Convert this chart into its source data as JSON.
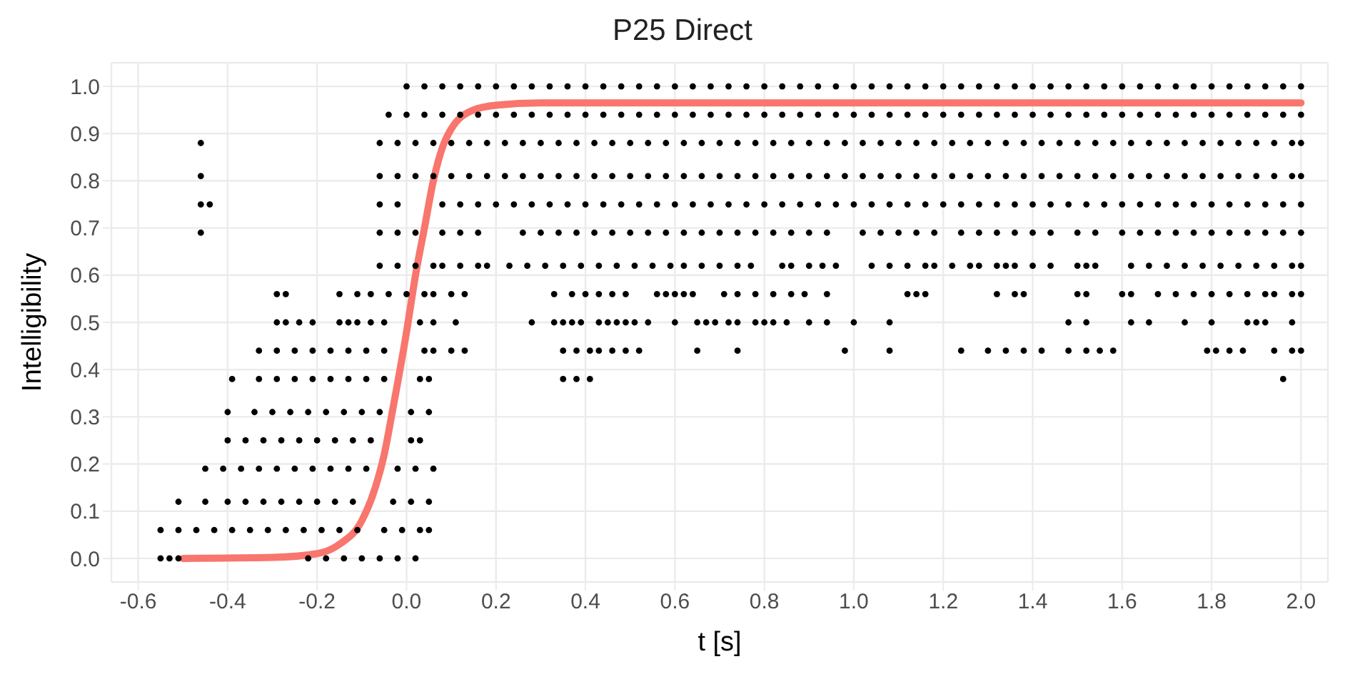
{
  "chart_data": {
    "type": "scatter",
    "title": "P25 Direct",
    "xlabel": "t [s]",
    "ylabel": "Intelligibility",
    "marker": "circle",
    "grid": true,
    "xlim": [
      -0.66,
      2.06
    ],
    "ylim": [
      -0.05,
      1.05
    ],
    "xticks": [
      -0.6,
      -0.4,
      -0.2,
      {
        "value": 0,
        "label": "0.0"
      },
      0.2,
      0.4,
      0.6,
      0.8,
      {
        "value": 1,
        "label": "1.0"
      },
      1.2,
      1.4,
      1.6,
      1.8,
      {
        "value": 2,
        "label": "2.0"
      }
    ],
    "yticks": [
      {
        "value": 0,
        "label": "0.0"
      },
      0.1,
      0.2,
      0.3,
      0.4,
      0.5,
      0.6,
      0.7,
      0.8,
      0.9,
      {
        "value": 1,
        "label": "1.0"
      }
    ],
    "series": [
      {
        "color": "#000000",
        "x": [
          0,
          0.04,
          0.08,
          0.12,
          0.16,
          0.2,
          0.24,
          0.28,
          0.32,
          0.36,
          0.4,
          0.44,
          0.48,
          0.52,
          0.56,
          0.6,
          0.64,
          0.68,
          0.72,
          0.76,
          0.8,
          0.84,
          0.88,
          0.92,
          0.96,
          1,
          1.04,
          1.08,
          1.12,
          1.16,
          1.2,
          1.24,
          1.28,
          1.32,
          1.36,
          1.4,
          1.44,
          1.48,
          1.52,
          1.56,
          1.6,
          1.64,
          1.68,
          1.72,
          1.76,
          1.8,
          1.84,
          1.88,
          1.92,
          1.96,
          2
        ],
        "values": [
          1,
          1,
          1,
          1,
          1,
          1,
          1,
          1,
          1,
          1,
          1,
          1,
          1,
          1,
          1,
          1,
          1,
          1,
          1,
          1,
          1,
          1,
          1,
          1,
          1,
          1,
          1,
          1,
          1,
          1,
          1,
          1,
          1,
          1,
          1,
          1,
          1,
          1,
          1,
          1,
          1,
          1,
          1,
          1,
          1,
          1,
          1,
          1,
          1,
          1,
          1
        ]
      },
      {
        "color": "#000000",
        "x": [
          -0.04,
          0,
          0.04,
          0.08,
          0.12,
          0.16,
          0.2,
          0.24,
          0.28,
          0.32,
          0.36,
          0.4,
          0.44,
          0.48,
          0.52,
          0.56,
          0.6,
          0.64,
          0.68,
          0.72,
          0.76,
          0.8,
          0.84,
          0.88,
          0.92,
          0.96,
          1,
          1.04,
          1.08,
          1.12,
          1.16,
          1.2,
          1.24,
          1.28,
          1.32,
          1.36,
          1.4,
          1.44,
          1.48,
          1.52,
          1.56,
          1.6,
          1.64,
          1.68,
          1.72,
          1.76,
          1.8,
          1.84,
          1.88,
          1.92,
          1.96,
          2
        ],
        "values": [
          0.94,
          0.94,
          0.94,
          0.94,
          0.94,
          0.94,
          0.94,
          0.94,
          0.94,
          0.94,
          0.94,
          0.94,
          0.94,
          0.94,
          0.94,
          0.94,
          0.94,
          0.94,
          0.94,
          0.94,
          0.94,
          0.94,
          0.94,
          0.94,
          0.94,
          0.94,
          0.94,
          0.94,
          0.94,
          0.94,
          0.94,
          0.94,
          0.94,
          0.94,
          0.94,
          0.94,
          0.94,
          0.94,
          0.94,
          0.94,
          0.94,
          0.94,
          0.94,
          0.94,
          0.94,
          0.94,
          0.94,
          0.94,
          0.94,
          0.94,
          0.94,
          0.94
        ]
      },
      {
        "color": "#000000",
        "x": [
          -0.46,
          -0.06,
          -0.02,
          0.02,
          0.06,
          0.1,
          0.14,
          0.18,
          0.22,
          0.26,
          0.3,
          0.34,
          0.38,
          0.42,
          0.46,
          0.5,
          0.54,
          0.58,
          0.62,
          0.66,
          0.7,
          0.74,
          0.78,
          0.82,
          0.86,
          0.9,
          0.94,
          0.98,
          1.02,
          1.06,
          1.1,
          1.14,
          1.18,
          1.22,
          1.26,
          1.3,
          1.34,
          1.38,
          1.42,
          1.46,
          1.5,
          1.54,
          1.58,
          1.62,
          1.66,
          1.7,
          1.74,
          1.78,
          1.82,
          1.86,
          1.9,
          1.94,
          1.98,
          2
        ],
        "values": [
          0.88,
          0.88,
          0.88,
          0.88,
          0.88,
          0.88,
          0.88,
          0.88,
          0.88,
          0.88,
          0.88,
          0.88,
          0.88,
          0.88,
          0.88,
          0.88,
          0.88,
          0.88,
          0.88,
          0.88,
          0.88,
          0.88,
          0.88,
          0.88,
          0.88,
          0.88,
          0.88,
          0.88,
          0.88,
          0.88,
          0.88,
          0.88,
          0.88,
          0.88,
          0.88,
          0.88,
          0.88,
          0.88,
          0.88,
          0.88,
          0.88,
          0.88,
          0.88,
          0.88,
          0.88,
          0.88,
          0.88,
          0.88,
          0.88,
          0.88,
          0.88,
          0.88,
          0.88,
          0.88
        ]
      },
      {
        "color": "#000000",
        "x": [
          -0.46,
          -0.06,
          -0.02,
          0.02,
          0.06,
          0.1,
          0.14,
          0.18,
          0.22,
          0.26,
          0.3,
          0.34,
          0.38,
          0.42,
          0.46,
          0.5,
          0.54,
          0.58,
          0.62,
          0.66,
          0.7,
          0.74,
          0.78,
          0.82,
          0.86,
          0.9,
          0.94,
          0.98,
          1.02,
          1.06,
          1.1,
          1.14,
          1.18,
          1.22,
          1.26,
          1.3,
          1.34,
          1.38,
          1.42,
          1.46,
          1.5,
          1.54,
          1.58,
          1.62,
          1.66,
          1.7,
          1.74,
          1.78,
          1.82,
          1.86,
          1.9,
          1.94,
          1.98,
          2
        ],
        "values": [
          0.81,
          0.81,
          0.81,
          0.81,
          0.81,
          0.81,
          0.81,
          0.81,
          0.81,
          0.81,
          0.81,
          0.81,
          0.81,
          0.81,
          0.81,
          0.81,
          0.81,
          0.81,
          0.81,
          0.81,
          0.81,
          0.81,
          0.81,
          0.81,
          0.81,
          0.81,
          0.81,
          0.81,
          0.81,
          0.81,
          0.81,
          0.81,
          0.81,
          0.81,
          0.81,
          0.81,
          0.81,
          0.81,
          0.81,
          0.81,
          0.81,
          0.81,
          0.81,
          0.81,
          0.81,
          0.81,
          0.81,
          0.81,
          0.81,
          0.81,
          0.81,
          0.81,
          0.81,
          0.81
        ]
      },
      {
        "color": "#000000",
        "x": [
          -0.46,
          -0.44,
          -0.06,
          -0.02,
          0.08,
          0.12,
          0.16,
          0.2,
          0.24,
          0.28,
          0.32,
          0.36,
          0.4,
          0.44,
          0.48,
          0.52,
          0.56,
          0.6,
          0.64,
          0.68,
          0.72,
          0.76,
          0.8,
          0.84,
          0.88,
          0.92,
          0.96,
          1,
          1.04,
          1.08,
          1.12,
          1.16,
          1.2,
          1.24,
          1.28,
          1.32,
          1.36,
          1.4,
          1.44,
          1.48,
          1.52,
          1.56,
          1.6,
          1.64,
          1.68,
          1.72,
          1.76,
          1.8,
          1.84,
          1.88,
          1.92,
          1.96,
          2
        ],
        "values": [
          0.75,
          0.75,
          0.75,
          0.75,
          0.75,
          0.75,
          0.75,
          0.75,
          0.75,
          0.75,
          0.75,
          0.75,
          0.75,
          0.75,
          0.75,
          0.75,
          0.75,
          0.75,
          0.75,
          0.75,
          0.75,
          0.75,
          0.75,
          0.75,
          0.75,
          0.75,
          0.75,
          0.75,
          0.75,
          0.75,
          0.75,
          0.75,
          0.75,
          0.75,
          0.75,
          0.75,
          0.75,
          0.75,
          0.75,
          0.75,
          0.75,
          0.75,
          0.75,
          0.75,
          0.75,
          0.75,
          0.75,
          0.75,
          0.75,
          0.75,
          0.75,
          0.75,
          0.75
        ]
      },
      {
        "color": "#000000",
        "x": [
          -0.46,
          -0.06,
          -0.02,
          0.02,
          0.08,
          0.12,
          0.16,
          0.26,
          0.3,
          0.34,
          0.38,
          0.42,
          0.46,
          0.5,
          0.54,
          0.58,
          0.62,
          0.66,
          0.7,
          0.74,
          0.78,
          0.82,
          0.86,
          0.9,
          0.94,
          1.02,
          1.06,
          1.1,
          1.14,
          1.18,
          1.24,
          1.28,
          1.32,
          1.36,
          1.4,
          1.44,
          1.5,
          1.54,
          1.6,
          1.64,
          1.68,
          1.72,
          1.76,
          1.8,
          1.84,
          1.88,
          1.92,
          1.96,
          2
        ],
        "values": [
          0.69,
          0.69,
          0.69,
          0.69,
          0.69,
          0.69,
          0.69,
          0.69,
          0.69,
          0.69,
          0.69,
          0.69,
          0.69,
          0.69,
          0.69,
          0.69,
          0.69,
          0.69,
          0.69,
          0.69,
          0.69,
          0.69,
          0.69,
          0.69,
          0.69,
          0.69,
          0.69,
          0.69,
          0.69,
          0.69,
          0.69,
          0.69,
          0.69,
          0.69,
          0.69,
          0.69,
          0.69,
          0.69,
          0.69,
          0.69,
          0.69,
          0.69,
          0.69,
          0.69,
          0.69,
          0.69,
          0.69,
          0.69,
          0.69
        ]
      },
      {
        "color": "#000000",
        "x": [
          -0.06,
          -0.02,
          0.02,
          0.06,
          0.08,
          0.12,
          0.16,
          0.18,
          0.23,
          0.27,
          0.31,
          0.35,
          0.39,
          0.43,
          0.47,
          0.51,
          0.55,
          0.59,
          0.62,
          0.66,
          0.7,
          0.74,
          0.77,
          0.84,
          0.86,
          0.9,
          0.93,
          0.96,
          1.04,
          1.08,
          1.12,
          1.16,
          1.18,
          1.22,
          1.26,
          1.28,
          1.32,
          1.34,
          1.36,
          1.4,
          1.44,
          1.5,
          1.52,
          1.54,
          1.62,
          1.66,
          1.7,
          1.74,
          1.78,
          1.82,
          1.86,
          1.9,
          1.94,
          1.98,
          2
        ],
        "values": [
          0.62,
          0.62,
          0.62,
          0.62,
          0.62,
          0.62,
          0.62,
          0.62,
          0.62,
          0.62,
          0.62,
          0.62,
          0.62,
          0.62,
          0.62,
          0.62,
          0.62,
          0.62,
          0.62,
          0.62,
          0.62,
          0.62,
          0.62,
          0.62,
          0.62,
          0.62,
          0.62,
          0.62,
          0.62,
          0.62,
          0.62,
          0.62,
          0.62,
          0.62,
          0.62,
          0.62,
          0.62,
          0.62,
          0.62,
          0.62,
          0.62,
          0.62,
          0.62,
          0.62,
          0.62,
          0.62,
          0.62,
          0.62,
          0.62,
          0.62,
          0.62,
          0.62,
          0.62,
          0.62,
          0.62
        ]
      },
      {
        "color": "#000000",
        "x": [
          -0.29,
          -0.27,
          -0.15,
          -0.11,
          -0.08,
          -0.04,
          0,
          0.04,
          0.06,
          0.1,
          0.13,
          0.33,
          0.37,
          0.4,
          0.43,
          0.46,
          0.49,
          0.56,
          0.58,
          0.6,
          0.62,
          0.64,
          0.71,
          0.74,
          0.78,
          0.82,
          0.86,
          0.89,
          0.94,
          1.12,
          1.14,
          1.16,
          1.32,
          1.36,
          1.38,
          1.5,
          1.52,
          1.6,
          1.62,
          1.68,
          1.72,
          1.76,
          1.8,
          1.84,
          1.88,
          1.92,
          1.94,
          1.98,
          2
        ],
        "values": [
          0.56,
          0.56,
          0.56,
          0.56,
          0.56,
          0.56,
          0.56,
          0.56,
          0.56,
          0.56,
          0.56,
          0.56,
          0.56,
          0.56,
          0.56,
          0.56,
          0.56,
          0.56,
          0.56,
          0.56,
          0.56,
          0.56,
          0.56,
          0.56,
          0.56,
          0.56,
          0.56,
          0.56,
          0.56,
          0.56,
          0.56,
          0.56,
          0.56,
          0.56,
          0.56,
          0.56,
          0.56,
          0.56,
          0.56,
          0.56,
          0.56,
          0.56,
          0.56,
          0.56,
          0.56,
          0.56,
          0.56,
          0.56,
          0.56
        ]
      },
      {
        "color": "#000000",
        "x": [
          -0.29,
          -0.27,
          -0.24,
          -0.21,
          -0.15,
          -0.13,
          -0.11,
          -0.08,
          -0.05,
          0.03,
          0.06,
          0.11,
          0.28,
          0.33,
          0.35,
          0.37,
          0.39,
          0.43,
          0.45,
          0.47,
          0.49,
          0.51,
          0.54,
          0.6,
          0.65,
          0.67,
          0.69,
          0.72,
          0.74,
          0.78,
          0.8,
          0.82,
          0.85,
          0.9,
          0.94,
          1,
          1.08,
          1.48,
          1.52,
          1.62,
          1.66,
          1.74,
          1.8,
          1.88,
          1.9,
          1.92,
          1.98
        ],
        "values": [
          0.5,
          0.5,
          0.5,
          0.5,
          0.5,
          0.5,
          0.5,
          0.5,
          0.5,
          0.5,
          0.5,
          0.5,
          0.5,
          0.5,
          0.5,
          0.5,
          0.5,
          0.5,
          0.5,
          0.5,
          0.5,
          0.5,
          0.5,
          0.5,
          0.5,
          0.5,
          0.5,
          0.5,
          0.5,
          0.5,
          0.5,
          0.5,
          0.5,
          0.5,
          0.5,
          0.5,
          0.5,
          0.5,
          0.5,
          0.5,
          0.5,
          0.5,
          0.5,
          0.5,
          0.5,
          0.5,
          0.5
        ]
      },
      {
        "color": "#000000",
        "x": [
          -0.33,
          -0.29,
          -0.25,
          -0.21,
          -0.17,
          -0.13,
          -0.09,
          -0.05,
          0.04,
          0.06,
          0.1,
          0.13,
          0.35,
          0.38,
          0.41,
          0.43,
          0.46,
          0.49,
          0.52,
          0.65,
          0.74,
          0.98,
          1.08,
          1.24,
          1.3,
          1.34,
          1.38,
          1.42,
          1.48,
          1.52,
          1.55,
          1.58,
          1.79,
          1.81,
          1.84,
          1.87,
          1.94,
          1.98,
          2
        ],
        "values": [
          0.44,
          0.44,
          0.44,
          0.44,
          0.44,
          0.44,
          0.44,
          0.44,
          0.44,
          0.44,
          0.44,
          0.44,
          0.44,
          0.44,
          0.44,
          0.44,
          0.44,
          0.44,
          0.44,
          0.44,
          0.44,
          0.44,
          0.44,
          0.44,
          0.44,
          0.44,
          0.44,
          0.44,
          0.44,
          0.44,
          0.44,
          0.44,
          0.44,
          0.44,
          0.44,
          0.44,
          0.44,
          0.44,
          0.44
        ]
      },
      {
        "color": "#000000",
        "x": [
          -0.39,
          -0.33,
          -0.29,
          -0.25,
          -0.21,
          -0.17,
          -0.13,
          -0.09,
          -0.05,
          0.03,
          0.05,
          0.35,
          0.38,
          0.41,
          1.96
        ],
        "values": [
          0.38,
          0.38,
          0.38,
          0.38,
          0.38,
          0.38,
          0.38,
          0.38,
          0.38,
          0.38,
          0.38,
          0.38,
          0.38,
          0.38,
          0.38
        ]
      },
      {
        "color": "#000000",
        "x": [
          -0.4,
          -0.34,
          -0.3,
          -0.26,
          -0.22,
          -0.18,
          -0.14,
          -0.1,
          -0.06,
          0.01,
          0.05
        ],
        "values": [
          0.31,
          0.31,
          0.31,
          0.31,
          0.31,
          0.31,
          0.31,
          0.31,
          0.31,
          0.31,
          0.31
        ]
      },
      {
        "color": "#000000",
        "x": [
          -0.4,
          -0.36,
          -0.32,
          -0.28,
          -0.24,
          -0.2,
          -0.16,
          -0.12,
          -0.08,
          0.01,
          0.03
        ],
        "values": [
          0.25,
          0.25,
          0.25,
          0.25,
          0.25,
          0.25,
          0.25,
          0.25,
          0.25,
          0.25,
          0.25
        ]
      },
      {
        "color": "#000000",
        "x": [
          -0.45,
          -0.41,
          -0.37,
          -0.33,
          -0.29,
          -0.25,
          -0.21,
          -0.17,
          -0.13,
          -0.09,
          -0.02,
          0.02,
          0.06
        ],
        "values": [
          0.19,
          0.19,
          0.19,
          0.19,
          0.19,
          0.19,
          0.19,
          0.19,
          0.19,
          0.19,
          0.19,
          0.19,
          0.19
        ]
      },
      {
        "color": "#000000",
        "x": [
          -0.51,
          -0.45,
          -0.4,
          -0.36,
          -0.32,
          -0.28,
          -0.24,
          -0.2,
          -0.16,
          -0.12,
          -0.03,
          0.01,
          0.05
        ],
        "values": [
          0.12,
          0.12,
          0.12,
          0.12,
          0.12,
          0.12,
          0.12,
          0.12,
          0.12,
          0.12,
          0.12,
          0.12,
          0.12
        ]
      },
      {
        "color": "#000000",
        "x": [
          -0.55,
          -0.51,
          -0.47,
          -0.43,
          -0.39,
          -0.35,
          -0.31,
          -0.27,
          -0.23,
          -0.19,
          -0.15,
          -0.11,
          -0.05,
          -0.01,
          0.03,
          0.05
        ],
        "values": [
          0.06,
          0.06,
          0.06,
          0.06,
          0.06,
          0.06,
          0.06,
          0.06,
          0.06,
          0.06,
          0.06,
          0.06,
          0.06,
          0.06,
          0.06,
          0.06
        ]
      },
      {
        "color": "#000000",
        "x": [
          -0.55,
          -0.53,
          -0.51,
          -0.22,
          -0.18,
          -0.14,
          -0.1,
          -0.06,
          -0.02,
          0.02
        ],
        "values": [
          0,
          0,
          0,
          0,
          0,
          0,
          0,
          0,
          0,
          0
        ]
      },
      {
        "type": "line",
        "color": "#f8766d",
        "marker": "none",
        "x": [
          -0.5,
          -0.3,
          -0.2,
          -0.15,
          -0.1,
          -0.07,
          -0.05,
          -0.03,
          0,
          0.02,
          0.04,
          0.06,
          0.08,
          0.1,
          0.15,
          0.2,
          0.3,
          2
        ],
        "values": [
          0,
          0.002,
          0.01,
          0.03,
          0.08,
          0.15,
          0.22,
          0.32,
          0.48,
          0.6,
          0.7,
          0.8,
          0.87,
          0.91,
          0.95,
          0.96,
          0.965,
          0.965
        ]
      }
    ]
  }
}
